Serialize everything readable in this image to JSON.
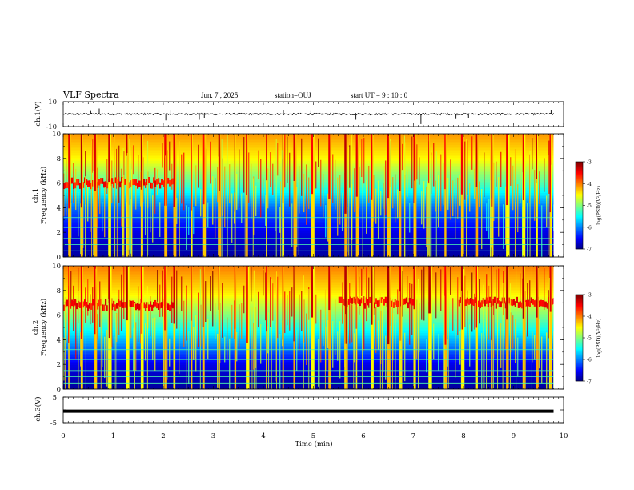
{
  "header": {
    "title": "VLF Spectra",
    "date": "Jun. 7 , 2025",
    "station": "station=OUJ",
    "start": "start UT = 9 : 10 : 0"
  },
  "panels": {
    "ch1_wave": {
      "ylabel": "ch.1(V)",
      "ytick_top": "10",
      "ytick_bottom": "-10"
    },
    "ch1_spec": {
      "ylabel_a": "ch.1",
      "ylabel_b": "Frequency (kHz)",
      "yticks": [
        "0",
        "2",
        "4",
        "6",
        "8",
        "10"
      ]
    },
    "ch2_spec": {
      "ylabel_a": "ch.2",
      "ylabel_b": "Frequency (kHz)",
      "yticks": [
        "0",
        "2",
        "4",
        "6",
        "8",
        "10"
      ]
    },
    "ch3_wave": {
      "ylabel": "ch.3(V)",
      "ytick_top": "5",
      "ytick_bottom": "-5"
    }
  },
  "xaxis": {
    "label": "Time (min)",
    "ticks": [
      "0",
      "1",
      "2",
      "3",
      "4",
      "5",
      "6",
      "7",
      "8",
      "9",
      "10"
    ]
  },
  "colorbar": {
    "label": "log(PSD)(V²/Hz)",
    "ticks": [
      "-3",
      "-4",
      "-5",
      "-6",
      "-7"
    ]
  },
  "colors": {
    "colormap": [
      "#00007f",
      "#0000ff",
      "#007fff",
      "#00ffff",
      "#7fff7f",
      "#ffff00",
      "#ff7f00",
      "#ff0000",
      "#7f0000"
    ]
  },
  "chart_data": [
    {
      "type": "line",
      "name": "ch1-waveform",
      "xlabel": "Time (min)",
      "ylabel": "ch.1(V)",
      "xlim": [
        0,
        10
      ],
      "ylim": [
        -10,
        10
      ],
      "data_extent_min": 9.8,
      "baseline": 0,
      "spikes": [
        {
          "t": 0.55,
          "v": 2.5
        },
        {
          "t": 0.72,
          "v": 4.5
        },
        {
          "t": 2.05,
          "v": -5
        },
        {
          "t": 2.15,
          "v": 2.8
        },
        {
          "t": 2.72,
          "v": -4.5
        },
        {
          "t": 2.82,
          "v": -3.5
        },
        {
          "t": 4.4,
          "v": 3
        },
        {
          "t": 4.95,
          "v": 2.5
        },
        {
          "t": 5.85,
          "v": -4.5
        },
        {
          "t": 7.15,
          "v": -8
        },
        {
          "t": 7.85,
          "v": -4
        },
        {
          "t": 8.1,
          "v": -3.5
        },
        {
          "t": 9.75,
          "v": 3.5
        }
      ]
    },
    {
      "type": "heatmap",
      "name": "ch1-spectrogram",
      "xlabel": "Time (min)",
      "ylabel": "Frequency (kHz)",
      "xlim": [
        0,
        10
      ],
      "ylim": [
        0,
        10
      ],
      "zlim": [
        -7,
        -3
      ],
      "data_extent_min": 9.8,
      "background_profile": [
        {
          "f": 0,
          "z": -6.9
        },
        {
          "f": 2,
          "z": -6.6
        },
        {
          "f": 4,
          "z": -6.1
        },
        {
          "f": 6,
          "z": -5.2
        },
        {
          "f": 8,
          "z": -4.5
        },
        {
          "f": 10,
          "z": -4.1
        }
      ],
      "bursts_min": [
        0.1,
        0.35,
        0.62,
        0.9,
        1.25,
        1.55,
        2.02,
        2.2,
        2.55,
        2.78,
        3.1,
        3.42,
        3.65,
        4.05,
        4.38,
        4.6,
        4.95,
        5.3,
        5.62,
        5.85,
        6.15,
        6.48,
        6.72,
        7.0,
        7.3,
        7.62,
        7.95,
        8.25,
        8.55,
        8.85,
        9.18,
        9.45,
        9.72
      ],
      "line_freqs_khz": [
        0.5,
        1.0,
        1.5,
        2.4,
        3.2
      ],
      "emission_bands": [
        {
          "t0": 0.0,
          "t1": 2.2,
          "f": 6.0
        }
      ]
    },
    {
      "type": "heatmap",
      "name": "ch2-spectrogram",
      "xlabel": "Time (min)",
      "ylabel": "Frequency (kHz)",
      "xlim": [
        0,
        10
      ],
      "ylim": [
        0,
        10
      ],
      "zlim": [
        -7,
        -3
      ],
      "data_extent_min": 9.8,
      "background_profile": [
        {
          "f": 0,
          "z": -6.9
        },
        {
          "f": 2,
          "z": -6.6
        },
        {
          "f": 4,
          "z": -5.8
        },
        {
          "f": 6,
          "z": -5.0
        },
        {
          "f": 8,
          "z": -4.4
        },
        {
          "f": 10,
          "z": -4.0
        }
      ],
      "bursts_min": [
        0.1,
        0.35,
        0.62,
        0.9,
        1.25,
        1.55,
        2.02,
        2.2,
        2.55,
        2.78,
        3.1,
        3.42,
        3.65,
        4.05,
        4.38,
        4.6,
        4.95,
        5.3,
        5.62,
        5.85,
        6.15,
        6.48,
        6.72,
        7.0,
        7.3,
        7.62,
        7.95,
        8.25,
        8.55,
        8.85,
        9.18,
        9.45,
        9.72
      ],
      "line_freqs_khz": [
        0.5,
        1.0,
        1.5,
        2.4,
        3.2
      ],
      "emission_bands": [
        {
          "t0": 0.0,
          "t1": 2.2,
          "f": 6.8
        },
        {
          "t0": 5.5,
          "t1": 7.0,
          "f": 7.0
        },
        {
          "t0": 7.9,
          "t1": 9.8,
          "f": 7.0
        }
      ]
    },
    {
      "type": "line",
      "name": "ch3-waveform",
      "xlabel": "Time (min)",
      "ylabel": "ch.3(V)",
      "xlim": [
        0,
        10
      ],
      "ylim": [
        -5,
        5
      ],
      "data_extent_min": 9.8,
      "constant_value": -0.5
    }
  ]
}
